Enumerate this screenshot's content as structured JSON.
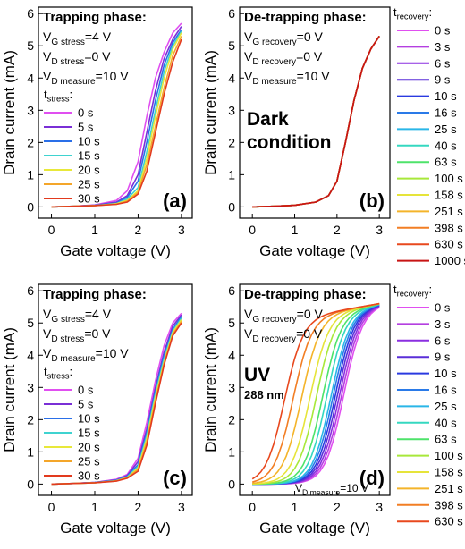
{
  "chart_data": [
    {
      "type": "line",
      "panel_label": "(a)",
      "xlabel": "Gate voltage (V)",
      "ylabel": "Drain current (mA)",
      "xlim": [
        -0.3,
        3.25
      ],
      "ylim": [
        -0.35,
        6.2
      ],
      "xticks": [
        "0",
        "1",
        "2",
        "3"
      ],
      "yticks": [
        "0",
        "1",
        "2",
        "3",
        "4",
        "5",
        "6"
      ],
      "title": "Trapping phase:",
      "conditions": [
        "V_G stress=4 V",
        "V_D stress=0 V",
        "V_D measure=10 V"
      ],
      "legend_title": "t_stress:",
      "legend_placement": "inside-left",
      "x": [
        0,
        0.5,
        1.0,
        1.5,
        1.75,
        2.0,
        2.2,
        2.4,
        2.6,
        2.8,
        3.0
      ],
      "series": [
        {
          "name": "0 s",
          "values": [
            0,
            0.02,
            0.06,
            0.2,
            0.5,
            1.4,
            2.8,
            4.0,
            4.8,
            5.4,
            5.7
          ]
        },
        {
          "name": "5 s",
          "values": [
            0,
            0.02,
            0.05,
            0.15,
            0.35,
            1.0,
            2.3,
            3.6,
            4.6,
            5.2,
            5.6
          ]
        },
        {
          "name": "10 s",
          "values": [
            0,
            0.02,
            0.05,
            0.12,
            0.3,
            0.8,
            2.0,
            3.3,
            4.4,
            5.1,
            5.5
          ]
        },
        {
          "name": "15 s",
          "values": [
            0,
            0.02,
            0.04,
            0.1,
            0.25,
            0.6,
            1.7,
            3.0,
            4.2,
            5.0,
            5.45
          ]
        },
        {
          "name": "20 s",
          "values": [
            0,
            0.02,
            0.04,
            0.1,
            0.2,
            0.5,
            1.5,
            2.8,
            4.0,
            4.9,
            5.4
          ]
        },
        {
          "name": "25 s",
          "values": [
            0,
            0.02,
            0.04,
            0.08,
            0.18,
            0.45,
            1.3,
            2.5,
            3.7,
            4.7,
            5.3
          ]
        },
        {
          "name": "30 s",
          "values": [
            0,
            0.02,
            0.04,
            0.08,
            0.15,
            0.4,
            1.1,
            2.3,
            3.5,
            4.5,
            5.2
          ]
        }
      ]
    },
    {
      "type": "line",
      "panel_label": "(b)",
      "xlabel": "Gate voltage (V)",
      "ylabel": "Drain current (mA)",
      "xlim": [
        -0.3,
        3.25
      ],
      "ylim": [
        -0.35,
        6.2
      ],
      "xticks": [
        "0",
        "1",
        "2",
        "3"
      ],
      "yticks": [
        "0",
        "1",
        "2",
        "3",
        "4",
        "5",
        "6"
      ],
      "title": "De-trapping phase:",
      "conditions": [
        "V_G recovery=0 V",
        "V_D recovery=0 V",
        "V_D measure=10 V"
      ],
      "annotation": [
        "Dark",
        "condition"
      ],
      "legend_title": "t_recovery:",
      "legend_placement": "outside-right",
      "x": [
        0,
        0.5,
        1.0,
        1.5,
        1.8,
        2.0,
        2.2,
        2.4,
        2.6,
        2.8,
        3.0
      ],
      "series": [
        {
          "name": "0 s",
          "values": [
            0,
            0.02,
            0.05,
            0.15,
            0.35,
            0.8,
            2.0,
            3.3,
            4.3,
            4.9,
            5.3
          ]
        },
        {
          "name": "3 s",
          "values": [
            0,
            0.02,
            0.05,
            0.15,
            0.35,
            0.8,
            2.0,
            3.3,
            4.3,
            4.9,
            5.3
          ]
        },
        {
          "name": "6 s",
          "values": [
            0,
            0.02,
            0.05,
            0.15,
            0.35,
            0.8,
            2.0,
            3.3,
            4.3,
            4.9,
            5.3
          ]
        },
        {
          "name": "9 s",
          "values": [
            0,
            0.02,
            0.05,
            0.15,
            0.35,
            0.8,
            2.0,
            3.3,
            4.3,
            4.9,
            5.3
          ]
        },
        {
          "name": "10 s",
          "values": [
            0,
            0.02,
            0.05,
            0.15,
            0.35,
            0.8,
            2.0,
            3.3,
            4.3,
            4.9,
            5.3
          ]
        },
        {
          "name": "16 s",
          "values": [
            0,
            0.02,
            0.05,
            0.15,
            0.35,
            0.8,
            2.0,
            3.3,
            4.3,
            4.9,
            5.3
          ]
        },
        {
          "name": "25 s",
          "values": [
            0,
            0.02,
            0.05,
            0.15,
            0.35,
            0.8,
            2.0,
            3.3,
            4.3,
            4.9,
            5.3
          ]
        },
        {
          "name": "40 s",
          "values": [
            0,
            0.02,
            0.05,
            0.15,
            0.35,
            0.8,
            2.0,
            3.3,
            4.3,
            4.9,
            5.3
          ]
        },
        {
          "name": "63 s",
          "values": [
            0,
            0.02,
            0.05,
            0.15,
            0.35,
            0.8,
            2.0,
            3.3,
            4.3,
            4.9,
            5.3
          ]
        },
        {
          "name": "100 s",
          "values": [
            0,
            0.02,
            0.05,
            0.15,
            0.35,
            0.8,
            2.0,
            3.3,
            4.3,
            4.9,
            5.3
          ]
        },
        {
          "name": "158 s",
          "values": [
            0,
            0.02,
            0.05,
            0.15,
            0.35,
            0.8,
            2.0,
            3.3,
            4.3,
            4.9,
            5.3
          ]
        },
        {
          "name": "251 s",
          "values": [
            0,
            0.02,
            0.05,
            0.15,
            0.35,
            0.8,
            2.0,
            3.3,
            4.3,
            4.9,
            5.3
          ]
        },
        {
          "name": "398 s",
          "values": [
            0,
            0.02,
            0.05,
            0.15,
            0.35,
            0.8,
            2.0,
            3.3,
            4.3,
            4.9,
            5.3
          ]
        },
        {
          "name": "630 s",
          "values": [
            0,
            0.02,
            0.05,
            0.15,
            0.35,
            0.8,
            2.0,
            3.3,
            4.3,
            4.9,
            5.3
          ]
        },
        {
          "name": "1000 s",
          "values": [
            0,
            0.02,
            0.05,
            0.15,
            0.35,
            0.8,
            2.0,
            3.3,
            4.3,
            4.9,
            5.3
          ]
        }
      ]
    },
    {
      "type": "line",
      "panel_label": "(c)",
      "xlabel": "Gate voltage (V)",
      "ylabel": "Drain current (mA)",
      "xlim": [
        -0.3,
        3.25
      ],
      "ylim": [
        -0.35,
        6.2
      ],
      "xticks": [
        "0",
        "1",
        "2",
        "3"
      ],
      "yticks": [
        "0",
        "1",
        "2",
        "3",
        "4",
        "5",
        "6"
      ],
      "title": "Trapping phase:",
      "conditions": [
        "V_G stress=4 V",
        "V_D stress=0 V",
        "V_D measure=10 V"
      ],
      "legend_title": "t_stress:",
      "legend_placement": "inside-left",
      "x": [
        0,
        0.5,
        1.0,
        1.5,
        1.75,
        2.0,
        2.2,
        2.4,
        2.6,
        2.8,
        3.0
      ],
      "series": [
        {
          "name": "0 s",
          "values": [
            0,
            0.02,
            0.05,
            0.15,
            0.3,
            0.8,
            1.9,
            3.2,
            4.3,
            5.0,
            5.3
          ]
        },
        {
          "name": "5 s",
          "values": [
            0,
            0.02,
            0.05,
            0.13,
            0.27,
            0.7,
            1.7,
            3.0,
            4.1,
            4.9,
            5.25
          ]
        },
        {
          "name": "10 s",
          "values": [
            0,
            0.02,
            0.05,
            0.12,
            0.25,
            0.6,
            1.6,
            2.9,
            4.0,
            4.8,
            5.2
          ]
        },
        {
          "name": "15 s",
          "values": [
            0,
            0.02,
            0.04,
            0.11,
            0.22,
            0.55,
            1.5,
            2.8,
            3.9,
            4.75,
            5.15
          ]
        },
        {
          "name": "20 s",
          "values": [
            0,
            0.02,
            0.04,
            0.1,
            0.2,
            0.5,
            1.4,
            2.7,
            3.8,
            4.7,
            5.1
          ]
        },
        {
          "name": "25 s",
          "values": [
            0,
            0.02,
            0.04,
            0.1,
            0.2,
            0.45,
            1.3,
            2.6,
            3.75,
            4.65,
            5.05
          ]
        },
        {
          "name": "30 s",
          "values": [
            0,
            0.02,
            0.04,
            0.09,
            0.18,
            0.4,
            1.2,
            2.5,
            3.7,
            4.6,
            5.0
          ]
        }
      ]
    },
    {
      "type": "line",
      "panel_label": "(d)",
      "xlabel": "Gate voltage (V)",
      "ylabel": "Drain current (mA)",
      "xlim": [
        -0.3,
        3.25
      ],
      "ylim": [
        -0.35,
        6.2
      ],
      "xticks": [
        "0",
        "1",
        "2",
        "3"
      ],
      "yticks": [
        "0",
        "1",
        "2",
        "3",
        "4",
        "5",
        "6"
      ],
      "title": "De-trapping phase:",
      "conditions": [
        "V_G recovery=0 V",
        "V_D recovery=0 V"
      ],
      "bottom_note": "V_D measure=10 V",
      "annotation": [
        "UV",
        "288 nm"
      ],
      "legend_title": "t_recovery:",
      "legend_placement": "outside-right",
      "curves_note": "threshold shifts left with increasing recovery time",
      "shift_V": [
        0,
        0.05,
        0.1,
        0.15,
        0.2,
        0.25,
        0.3,
        0.4,
        0.5,
        0.65,
        0.8,
        1.0,
        1.2,
        1.4
      ],
      "series": [
        {
          "name": "0 s"
        },
        {
          "name": "3 s"
        },
        {
          "name": "6 s"
        },
        {
          "name": "9 s"
        },
        {
          "name": "10 s"
        },
        {
          "name": "16 s"
        },
        {
          "name": "25 s"
        },
        {
          "name": "40 s"
        },
        {
          "name": "63 s"
        },
        {
          "name": "100 s"
        },
        {
          "name": "158 s"
        },
        {
          "name": "251 s"
        },
        {
          "name": "398 s"
        },
        {
          "name": "630 s"
        }
      ]
    }
  ],
  "colors": {
    "stress": [
      "#e04ff0",
      "#7a2fd6",
      "#2a6fe8",
      "#3fd3d0",
      "#e8e83a",
      "#f4a62a",
      "#e23a1e"
    ],
    "recovery": [
      "#e04ff0",
      "#b43fe0",
      "#8a2fe0",
      "#5a2fd8",
      "#2a3ae0",
      "#2a7ae8",
      "#2ab6e8",
      "#35d8c0",
      "#4ee36a",
      "#a8e83a",
      "#e6e43a",
      "#f4b42a",
      "#f27e24",
      "#e8481e",
      "#c81414"
    ]
  }
}
